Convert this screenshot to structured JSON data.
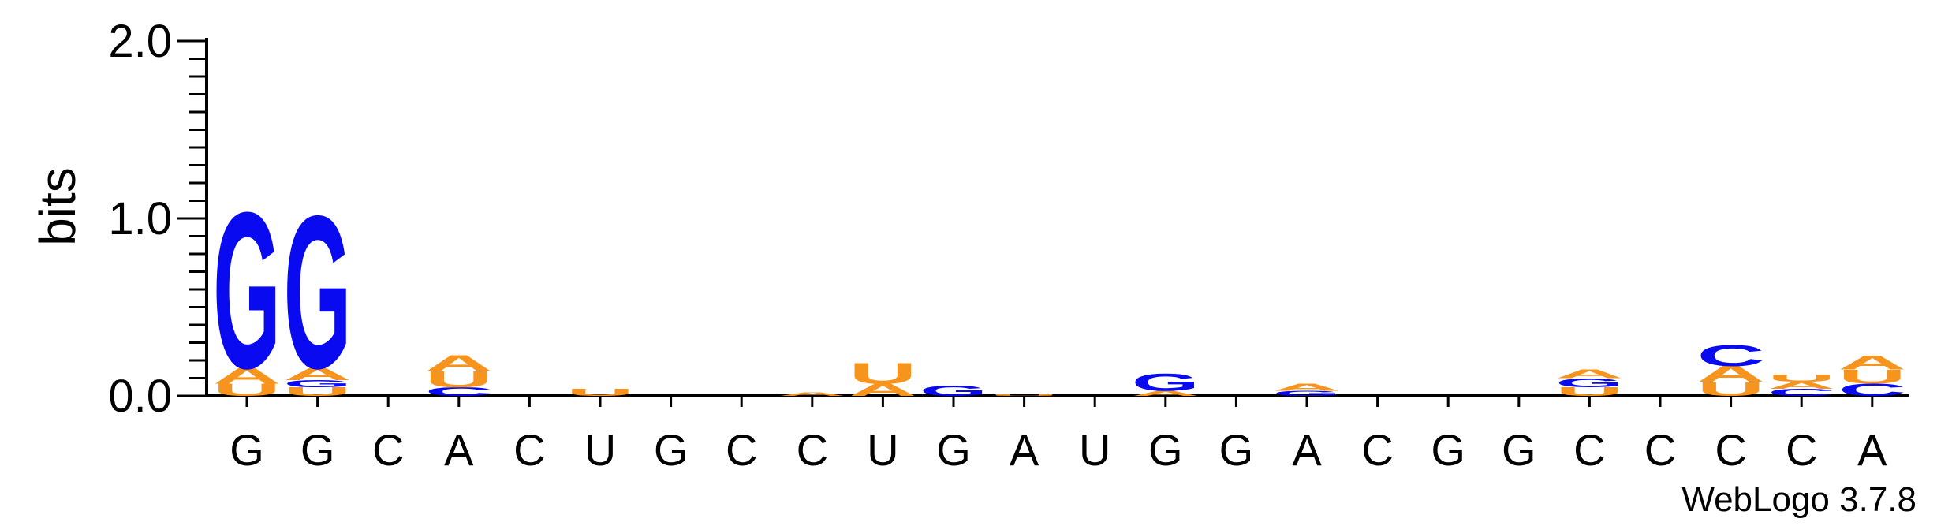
{
  "colors": {
    "A": "#f7941d",
    "U": "#f7941d",
    "G": "#0a0af0",
    "C": "#0a0af0",
    "axis": "#000000"
  },
  "chart_data": {
    "type": "sequence-logo",
    "ylabel": "bits",
    "ylim": [
      0,
      2.0
    ],
    "yticks": [
      "0.0",
      "1.0",
      "2.0"
    ],
    "credit": "WebLogo 3.7.8",
    "positions": [
      "G",
      "G",
      "C",
      "A",
      "C",
      "U",
      "G",
      "C",
      "C",
      "U",
      "G",
      "A",
      "U",
      "G",
      "G",
      "A",
      "C",
      "G",
      "G",
      "C",
      "C",
      "C",
      "C",
      "A"
    ],
    "stacks": [
      [
        {
          "l": "U",
          "h": 0.07
        },
        {
          "l": "A",
          "h": 0.09
        },
        {
          "l": "G",
          "h": 0.9
        }
      ],
      [
        {
          "l": "U",
          "h": 0.05
        },
        {
          "l": "G",
          "h": 0.04
        },
        {
          "l": "A",
          "h": 0.07
        },
        {
          "l": "G",
          "h": 0.88
        }
      ],
      [],
      [
        {
          "l": "C",
          "h": 0.05
        },
        {
          "l": "U",
          "h": 0.09
        },
        {
          "l": "A",
          "h": 0.09
        }
      ],
      [],
      [
        {
          "l": "U",
          "h": 0.04
        }
      ],
      [],
      [],
      [
        {
          "l": "A",
          "h": 0.02
        }
      ],
      [
        {
          "l": "A",
          "h": 0.07
        },
        {
          "l": "U",
          "h": 0.12
        }
      ],
      [
        {
          "l": "G",
          "h": 0.06
        }
      ],
      [
        {
          "l": "U",
          "h": 0.01
        }
      ],
      [],
      [
        {
          "l": "A",
          "h": 0.03
        },
        {
          "l": "G",
          "h": 0.1
        }
      ],
      [],
      [
        {
          "l": "G",
          "h": 0.03
        },
        {
          "l": "A",
          "h": 0.04
        }
      ],
      [],
      [],
      [],
      [
        {
          "l": "U",
          "h": 0.05
        },
        {
          "l": "G",
          "h": 0.05
        },
        {
          "l": "A",
          "h": 0.05
        }
      ],
      [],
      [
        {
          "l": "U",
          "h": 0.08
        },
        {
          "l": "A",
          "h": 0.09
        },
        {
          "l": "C",
          "h": 0.12
        }
      ],
      [
        {
          "l": "C",
          "h": 0.04
        },
        {
          "l": "A",
          "h": 0.04
        },
        {
          "l": "U",
          "h": 0.04
        }
      ],
      [
        {
          "l": "C",
          "h": 0.07
        },
        {
          "l": "U",
          "h": 0.08
        },
        {
          "l": "A",
          "h": 0.08
        }
      ]
    ]
  }
}
